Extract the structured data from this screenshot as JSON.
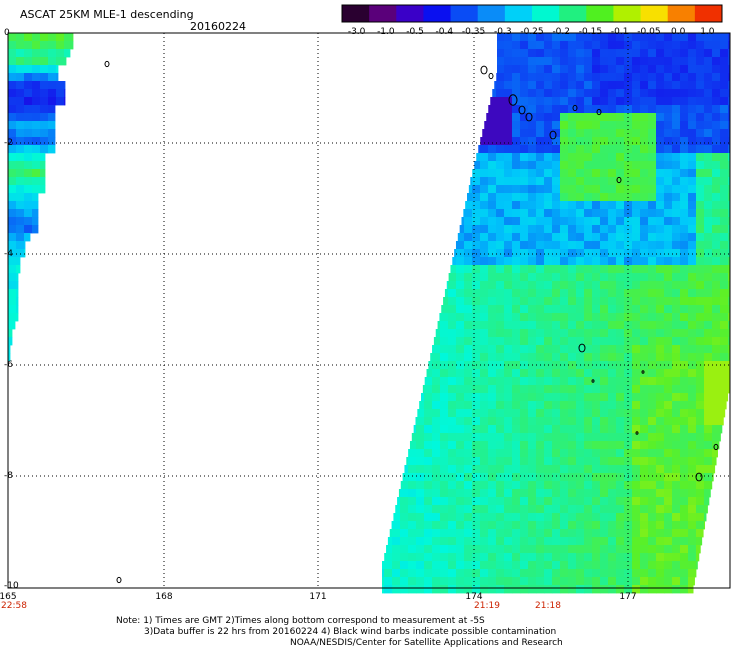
{
  "header": {
    "product": "ASCAT 25KM MLE-1 descending",
    "date": "20160224"
  },
  "colorbar": {
    "labels": [
      "-3.0",
      "-1.0",
      "-0.5",
      "-0.4",
      "-0.35",
      "-0.3",
      "-0.25",
      "-0.2",
      "-0.15",
      "-0.1",
      "-0.05",
      "0.0",
      "1.0"
    ],
    "colors": [
      "#2a0030",
      "#5a007a",
      "#3a00c8",
      "#0a10f0",
      "#0a4cf5",
      "#0a8cf8",
      "#00d0f8",
      "#00f8d0",
      "#20f080",
      "#50f020",
      "#b0f000",
      "#f8e000",
      "#f88000",
      "#f03000"
    ]
  },
  "map": {
    "lon_labels": [
      "165",
      "168",
      "171",
      "174",
      "177"
    ],
    "lat_labels": [
      "0",
      "-2",
      "-4",
      "-6",
      "-8",
      "-10"
    ],
    "times": {
      "left": "22:58",
      "mid1": "21:19",
      "mid2": "21:18"
    }
  },
  "notes": {
    "line1": "Note: 1) Times are GMT 2)Times along bottom correspond to measurement at -5S",
    "line2": "3)Data buffer is 22 hrs from 20160224 4) Black wind barbs indicate possible contamination",
    "line3": "NOAA/NESDIS/Center for Satellite Applications and Research"
  }
}
